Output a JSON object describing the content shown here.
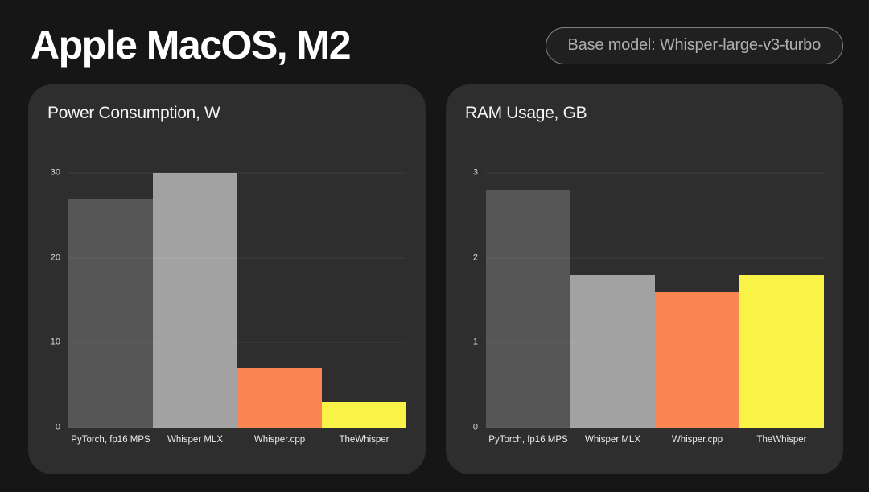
{
  "page": {
    "title": "Apple MacOS, M2",
    "badge_label": "Base model: Whisper-large-v3-turbo",
    "background_color": "#161616",
    "panel_color": "#2e2e2e"
  },
  "chart_data": [
    {
      "type": "bar",
      "title": "Power Consumption, W",
      "categories": [
        "PyTorch, fp16 MPS",
        "Whisper MLX",
        "Whisper.cpp",
        "TheWhisper"
      ],
      "values": [
        27,
        30,
        7,
        3
      ],
      "bar_colors": [
        "#565656",
        "#a2a2a2",
        "#fa8552",
        "#f8f346"
      ],
      "ylim": [
        0,
        30
      ],
      "yticks": [
        0,
        10,
        20,
        30
      ],
      "xlabel": "",
      "ylabel": "",
      "grid": "on",
      "legend": "none"
    },
    {
      "type": "bar",
      "title": "RAM Usage, GB",
      "categories": [
        "PyTorch, fp16 MPS",
        "Whisper MLX",
        "Whisper.cpp",
        "TheWhisper"
      ],
      "values": [
        2.8,
        1.8,
        1.6,
        1.8
      ],
      "bar_colors": [
        "#565656",
        "#a2a2a2",
        "#fa8552",
        "#f8f346"
      ],
      "ylim": [
        0,
        3
      ],
      "yticks": [
        0,
        1,
        2,
        3
      ],
      "xlabel": "",
      "ylabel": "",
      "grid": "on",
      "legend": "none"
    }
  ]
}
